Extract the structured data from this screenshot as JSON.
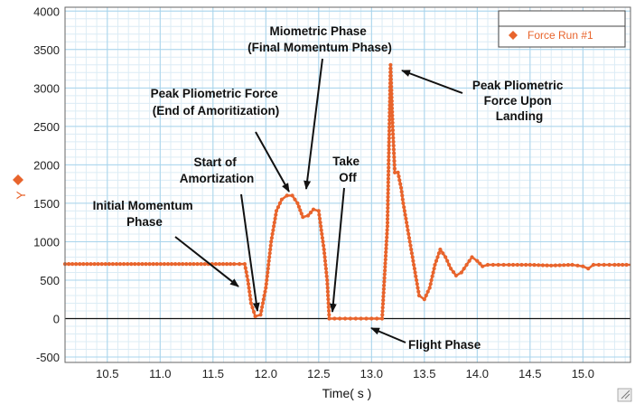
{
  "chart_data": {
    "type": "line",
    "title": "",
    "xlabel": "Time( s )",
    "ylabel": "Y",
    "xlim": [
      10.1,
      15.45
    ],
    "ylim": [
      -570,
      4050
    ],
    "x_ticks": [
      "10.5",
      "11.0",
      "11.5",
      "12.0",
      "12.5",
      "13.0",
      "13.5",
      "14.0",
      "14.5",
      "15.0"
    ],
    "y_ticks": [
      "-500",
      "0",
      "500",
      "1000",
      "1500",
      "2000",
      "2500",
      "3000",
      "3500",
      "4000"
    ],
    "grid": true,
    "legend": {
      "position": "top-right",
      "entries": [
        "Force Run #1"
      ]
    },
    "series": [
      {
        "name": "Force Run #1",
        "color": "#e8642c",
        "marker": "diamond",
        "x": [
          10.1,
          11.7,
          11.8,
          11.83,
          11.86,
          11.9,
          11.95,
          12.0,
          12.05,
          12.1,
          12.15,
          12.2,
          12.25,
          12.3,
          12.35,
          12.4,
          12.45,
          12.5,
          12.55,
          12.58,
          12.6,
          12.65,
          12.7,
          12.8,
          12.9,
          13.0,
          13.1,
          13.15,
          13.18,
          13.2,
          13.22,
          13.25,
          13.28,
          13.3,
          13.35,
          13.4,
          13.45,
          13.5,
          13.55,
          13.6,
          13.65,
          13.7,
          13.75,
          13.8,
          13.85,
          13.9,
          13.95,
          14.0,
          14.05,
          14.1,
          14.2,
          14.3,
          14.5,
          14.7,
          14.9,
          15.0,
          15.05,
          15.1,
          15.2,
          15.3,
          15.45
        ],
        "y": [
          710,
          710,
          710,
          500,
          200,
          30,
          50,
          400,
          1000,
          1400,
          1550,
          1600,
          1600,
          1500,
          1320,
          1340,
          1420,
          1400,
          900,
          500,
          0,
          0,
          0,
          0,
          0,
          0,
          0,
          1200,
          3300,
          2500,
          1900,
          1900,
          1700,
          1500,
          1100,
          700,
          300,
          250,
          400,
          700,
          900,
          800,
          650,
          560,
          600,
          700,
          800,
          750,
          680,
          700,
          700,
          700,
          700,
          690,
          700,
          680,
          650,
          700,
          700,
          700,
          700
        ]
      }
    ],
    "annotations": [
      {
        "id": "initial",
        "lines": [
          "Initial Momentum",
          "Phase"
        ]
      },
      {
        "id": "start-amort",
        "lines": [
          "Start of",
          "Amortization"
        ]
      },
      {
        "id": "peak-plio",
        "lines": [
          "Peak Pliometric Force",
          "(End of Amoritization)"
        ]
      },
      {
        "id": "miometric",
        "lines": [
          "Miometric Phase",
          "(Final Momentum Phase)"
        ]
      },
      {
        "id": "takeoff",
        "lines": [
          "Take",
          "Off"
        ]
      },
      {
        "id": "landing",
        "lines": [
          "Peak Pliometric",
          "Force Upon",
          "Landing"
        ]
      },
      {
        "id": "flight",
        "lines": [
          "Flight Phase"
        ]
      }
    ]
  }
}
